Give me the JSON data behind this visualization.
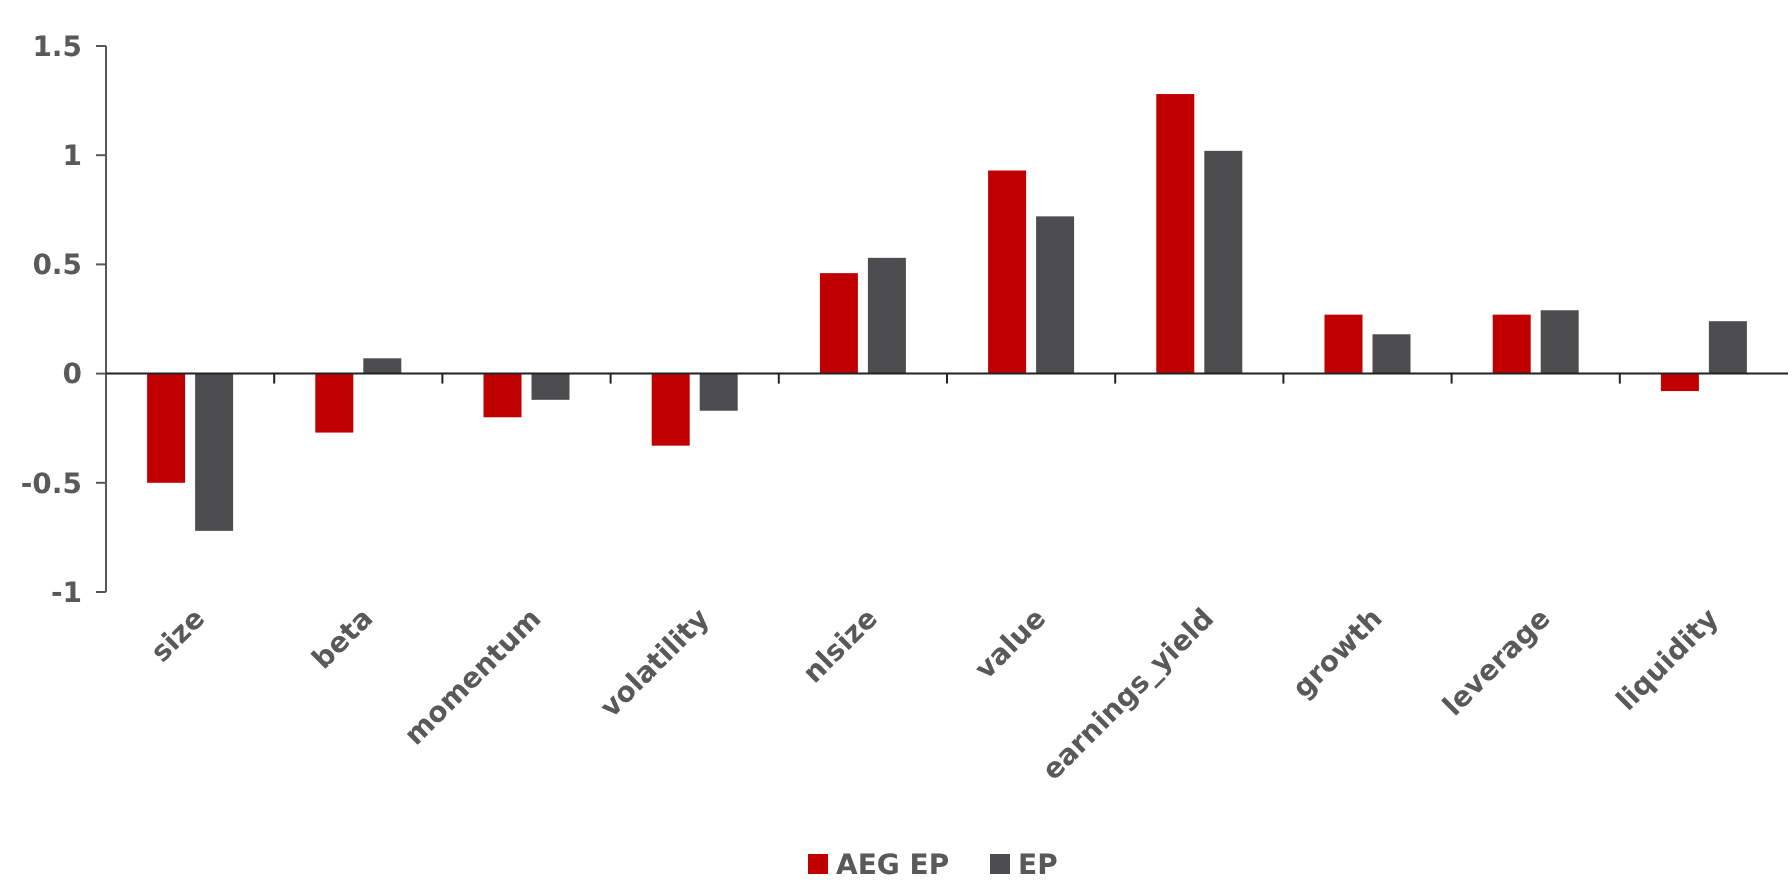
{
  "chart_data": {
    "type": "bar",
    "categories": [
      "size",
      "beta",
      "momentum",
      "volatility",
      "nlsize",
      "value",
      "earnings_yield",
      "growth",
      "leverage",
      "liquidity"
    ],
    "series": [
      {
        "name": "AEG EP",
        "color": "#c00000",
        "values": [
          -0.5,
          -0.27,
          -0.2,
          -0.33,
          0.46,
          0.93,
          1.28,
          0.27,
          0.27,
          -0.08
        ]
      },
      {
        "name": "EP",
        "color": "#4d4d4f",
        "values": [
          -0.72,
          0.07,
          -0.12,
          -0.17,
          0.53,
          0.72,
          1.02,
          0.18,
          0.29,
          0.24
        ]
      }
    ],
    "ylim": [
      -1,
      1.5
    ],
    "yticks": [
      -1,
      -0.5,
      0,
      0.5,
      1,
      1.5
    ],
    "legend": "bottom"
  }
}
